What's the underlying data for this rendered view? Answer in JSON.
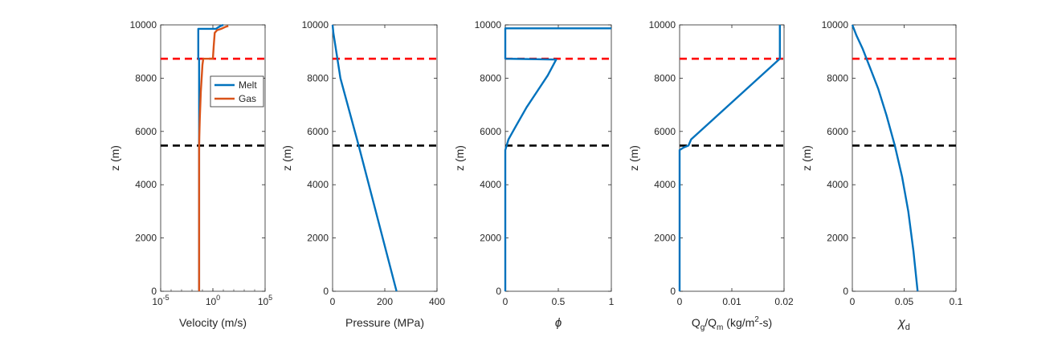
{
  "colors": {
    "melt": "#0072BD",
    "gas": "#D95319",
    "red_line": "#FF0000",
    "black_line": "#000000",
    "axes": "#262626"
  },
  "chart_data": [
    {
      "type": "line",
      "xscale": "log",
      "xlim": [
        1e-05,
        100000
      ],
      "ylim": [
        0,
        10000
      ],
      "xticks": [
        "10",
        "10",
        "10"
      ],
      "xtick_exponents": [
        "-5",
        "0",
        "5"
      ],
      "yticks": [
        "0",
        "2000",
        "4000",
        "6000",
        "8000",
        "10000"
      ],
      "xlabel": "Velocity (m/s)",
      "ylabel": "z (m)",
      "legend": {
        "position": "upper-right",
        "entries": [
          "Melt",
          "Gas"
        ]
      },
      "hlines": [
        {
          "y": 8730,
          "color": "red",
          "style": "dashed"
        },
        {
          "y": 5470,
          "color": "black",
          "style": "dashed"
        }
      ],
      "series": [
        {
          "name": "Melt",
          "x": [
            0.048,
            0.048,
            0.048,
            0.048,
            0.048,
            0.048,
            0.048,
            0.048,
            0.048,
            0.048,
            0.04,
            0.04,
            2.0,
            3.0,
            5.0,
            10.0
          ],
          "y": [
            0,
            2000,
            4000,
            5300,
            5470,
            6000,
            7000,
            8000,
            8600,
            8730,
            8730,
            9850,
            9850,
            9900,
            9950,
            10000
          ]
        },
        {
          "name": "Gas",
          "x": [
            0.048,
            0.048,
            0.048,
            0.048,
            0.05,
            0.056,
            0.07,
            0.09,
            0.1,
            0.12,
            1.0,
            1.2,
            1.5,
            2.5,
            6.0,
            15.0,
            30.0
          ],
          "y": [
            0,
            2000,
            4000,
            5470,
            5800,
            6500,
            7500,
            8200,
            8500,
            8730,
            8730,
            9200,
            9700,
            9800,
            9850,
            9920,
            9960
          ]
        }
      ]
    },
    {
      "type": "line",
      "xlim": [
        0,
        400
      ],
      "ylim": [
        0,
        10000
      ],
      "xticks": [
        "0",
        "200",
        "400"
      ],
      "yticks": [
        "0",
        "2000",
        "4000",
        "6000",
        "8000",
        "10000"
      ],
      "xlabel": "Pressure (MPa)",
      "ylabel": "z (m)",
      "hlines": [
        {
          "y": 8730,
          "color": "red",
          "style": "dashed"
        },
        {
          "y": 5470,
          "color": "black",
          "style": "dashed"
        }
      ],
      "series": [
        {
          "x": [
            245,
            100,
            30,
            3,
            0
          ],
          "y": [
            0,
            5470,
            8000,
            9700,
            10000
          ]
        }
      ]
    },
    {
      "type": "line",
      "xlim": [
        0,
        1
      ],
      "ylim": [
        0,
        10000
      ],
      "xticks": [
        "0",
        "0.5",
        "1"
      ],
      "yticks": [
        "0",
        "2000",
        "4000",
        "6000",
        "8000",
        "10000"
      ],
      "xlabel": "ϕ",
      "ylabel": "z (m)",
      "hlines": [
        {
          "y": 8730,
          "color": "red",
          "style": "dashed"
        },
        {
          "y": 5470,
          "color": "black",
          "style": "dashed"
        }
      ],
      "series": [
        {
          "x": [
            0,
            0,
            0,
            0.03,
            0.1,
            0.2,
            0.3,
            0.4,
            0.48,
            0.0,
            0.0,
            0.0,
            1.0
          ],
          "y": [
            0,
            2000,
            5300,
            5700,
            6200,
            6900,
            7500,
            8100,
            8700,
            8730,
            9800,
            9870,
            9870
          ]
        }
      ]
    },
    {
      "type": "line",
      "xlim": [
        0,
        0.02
      ],
      "ylim": [
        0,
        10000
      ],
      "xticks": [
        "0",
        "0.01",
        "0.02"
      ],
      "yticks": [
        "0",
        "2000",
        "4000",
        "6000",
        "8000",
        "10000"
      ],
      "xlabel": "Qg/Qm (kg/m2-s)",
      "xlabel_parts": {
        "q": "Q",
        "g": "g",
        "slash": "/",
        "m": "m",
        "units_start": " (kg/m",
        "sq": "2",
        "units_end": "-s)"
      },
      "ylabel": "z (m)",
      "hlines": [
        {
          "y": 8730,
          "color": "red",
          "style": "dashed"
        },
        {
          "y": 5470,
          "color": "black",
          "style": "dashed"
        }
      ],
      "series": [
        {
          "x": [
            0,
            0,
            0.0008,
            0.0017,
            0.0022,
            0.0192,
            0.0192,
            0.0192
          ],
          "y": [
            0,
            5300,
            5400,
            5470,
            5700,
            8730,
            8730,
            10000
          ]
        }
      ]
    },
    {
      "type": "line",
      "xlim": [
        0,
        0.1
      ],
      "ylim": [
        0,
        10000
      ],
      "xticks": [
        "0",
        "0.05",
        "0.1"
      ],
      "yticks": [
        "0",
        "2000",
        "4000",
        "6000",
        "8000",
        "10000"
      ],
      "xlabel": "χd",
      "xlabel_parts": {
        "chi": "χ",
        "sub": "d"
      },
      "ylabel": "z (m)",
      "hlines": [
        {
          "y": 8730,
          "color": "red",
          "style": "dashed"
        },
        {
          "y": 5470,
          "color": "black",
          "style": "dashed"
        }
      ],
      "series": [
        {
          "x": [
            0.063,
            0.059,
            0.054,
            0.048,
            0.041,
            0.033,
            0.025,
            0.017,
            0.01,
            0.004,
            0.001,
            0.0
          ],
          "y": [
            0,
            1500,
            3000,
            4300,
            5470,
            6600,
            7600,
            8400,
            9100,
            9600,
            9900,
            10000
          ]
        }
      ]
    }
  ]
}
